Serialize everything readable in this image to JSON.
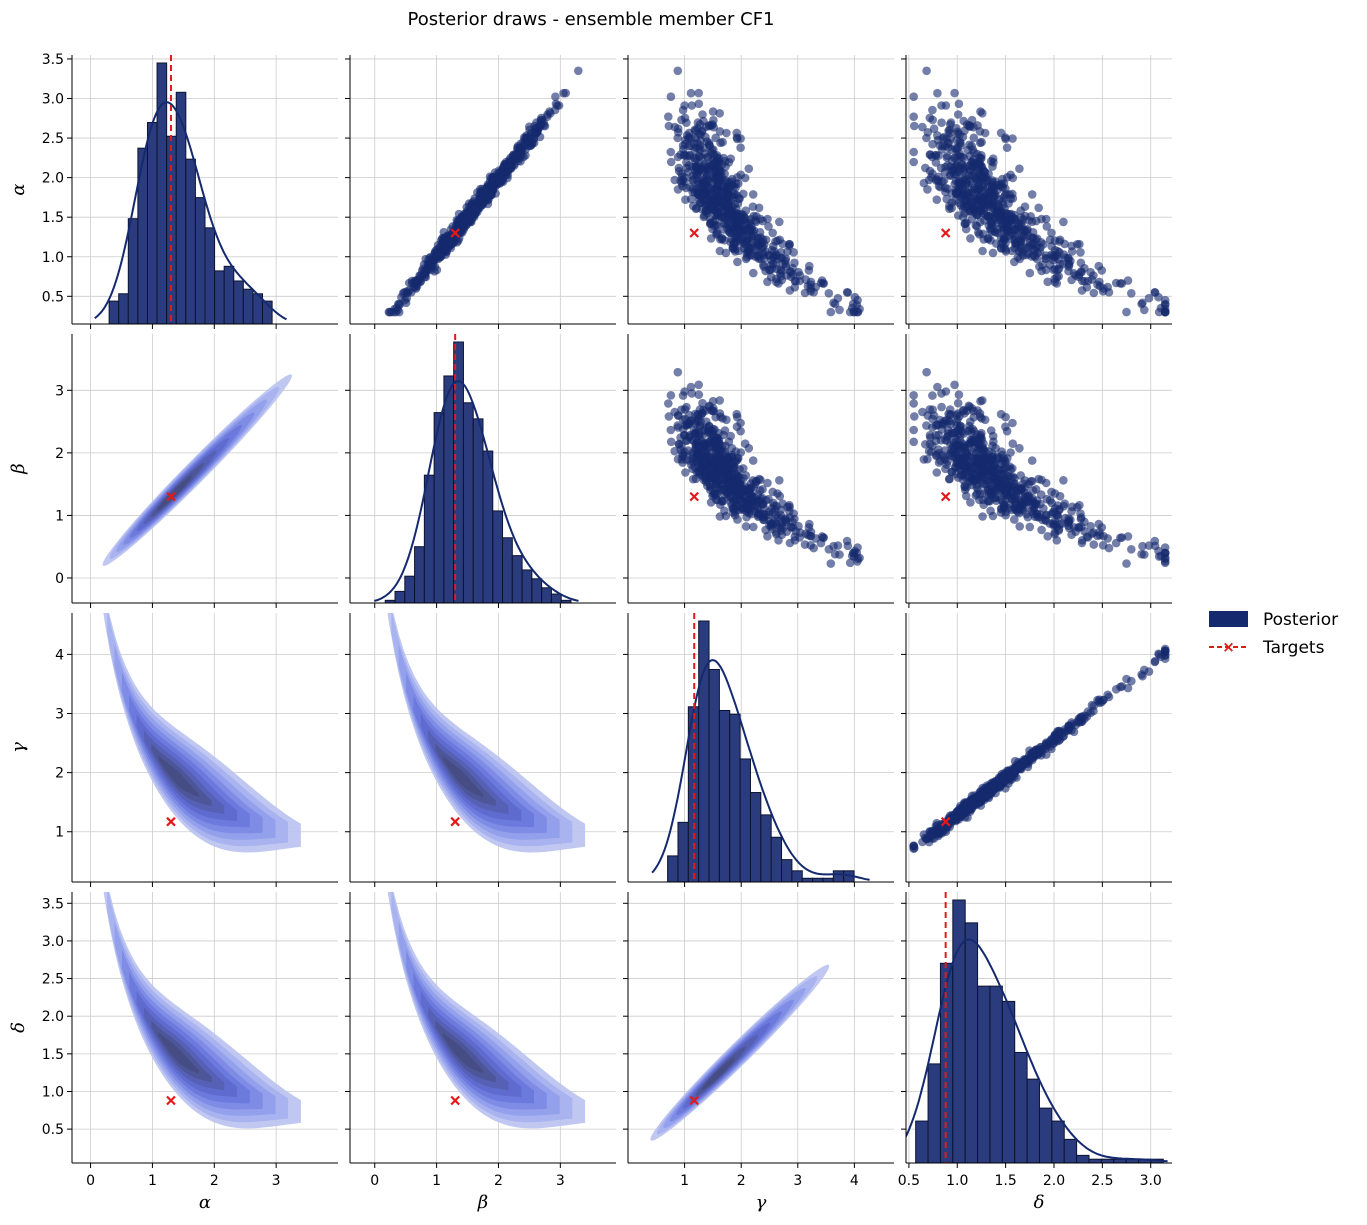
{
  "chart_data": {
    "type": "pairplot",
    "title": "Posterior draws - ensemble member CF1",
    "variables": [
      "α",
      "β",
      "γ",
      "δ"
    ],
    "axis_labels": [
      "α",
      "β",
      "γ",
      "δ"
    ],
    "x_ranges": [
      [
        -0.3,
        4.0
      ],
      [
        -0.4,
        3.9
      ],
      [
        0.0,
        4.7
      ],
      [
        0.47,
        3.22
      ]
    ],
    "y_ranges": [
      [
        0.15,
        3.55
      ],
      [
        -0.4,
        3.9
      ],
      [
        0.15,
        4.7
      ],
      [
        0.05,
        3.65
      ]
    ],
    "x_ticks": [
      [
        0,
        1,
        2,
        3
      ],
      [
        0,
        1,
        2,
        3
      ],
      [
        1,
        2,
        3,
        4
      ],
      [
        0.5,
        1.0,
        1.5,
        2.0,
        2.5,
        3.0
      ]
    ],
    "x_tick_labels": [
      [
        "0",
        "1",
        "2",
        "3"
      ],
      [
        "0",
        "1",
        "2",
        "3"
      ],
      [
        "1",
        "2",
        "3",
        "4"
      ],
      [
        "0.5",
        "1.0",
        "1.5",
        "2.0",
        "2.5",
        "3.0"
      ]
    ],
    "y_ticks": [
      [
        0.5,
        1.0,
        1.5,
        2.0,
        2.5,
        3.0,
        3.5
      ],
      [
        0,
        1,
        2,
        3
      ],
      [
        1,
        2,
        3,
        4
      ],
      [
        0.5,
        1.0,
        1.5,
        2.0,
        2.5,
        3.0,
        3.5
      ]
    ],
    "y_tick_labels": [
      [
        "0.5",
        "1.0",
        "1.5",
        "2.0",
        "2.5",
        "3.0",
        "3.5"
      ],
      [
        "0",
        "1",
        "2",
        "3"
      ],
      [
        "1",
        "2",
        "3",
        "4"
      ],
      [
        "0.5",
        "1.0",
        "1.5",
        "2.0",
        "2.5",
        "3.0",
        "3.5"
      ]
    ],
    "targets": [
      1.3,
      1.3,
      1.17,
      0.88
    ],
    "histograms": [
      {
        "variable": "α",
        "bin_start": 0.3,
        "bin_width": 0.155,
        "counts": [
          0.25,
          0.33,
          1.15,
          1.92,
          2.2,
          2.85,
          2.05,
          2.53,
          1.8,
          1.38,
          1.05,
          0.58,
          0.63,
          0.47,
          0.38,
          0.33,
          0.25
        ]
      },
      {
        "variable": "β",
        "bin_start": 0.17,
        "bin_width": 0.158,
        "counts": [
          0.03,
          0.13,
          0.3,
          0.63,
          1.43,
          2.13,
          2.54,
          2.92,
          2.24,
          2.06,
          1.7,
          1.03,
          0.73,
          0.53,
          0.37,
          0.27,
          0.17,
          0.1,
          0.03
        ]
      },
      {
        "variable": "γ",
        "bin_start": 0.7,
        "bin_width": 0.183,
        "counts": [
          0.35,
          0.8,
          2.35,
          3.5,
          2.85,
          2.3,
          2.25,
          1.65,
          1.2,
          0.9,
          0.6,
          0.3,
          0.15,
          0.05,
          0.05,
          0.05,
          0.15,
          0.15
        ]
      },
      {
        "variable": "δ",
        "bin_start": 0.57,
        "bin_width": 0.128,
        "counts": [
          0.55,
          1.3,
          2.62,
          3.45,
          3.15,
          2.32,
          2.32,
          2.12,
          1.45,
          1.1,
          0.72,
          0.55,
          0.31,
          0.1,
          0.05,
          0.05,
          0.05,
          0.05,
          0.05,
          0.05
        ]
      }
    ],
    "pairs": [
      {
        "x": "β",
        "y": "α",
        "relation": "linear",
        "slope": 1.0,
        "intercept": 0.0
      },
      {
        "x": "δ",
        "y": "γ",
        "relation": "linear",
        "slope": 1.33,
        "intercept": 0.0
      },
      {
        "x": "γ",
        "y": "α",
        "relation": "inverse"
      },
      {
        "x": "δ",
        "y": "α",
        "relation": "inverse"
      }
    ],
    "legend": [
      {
        "label": "Posterior",
        "color": "#152a6e",
        "kind": "patch"
      },
      {
        "label": "Targets",
        "color": "#e31a1c",
        "kind": "dashed-line-x-marker"
      }
    ],
    "legend_position": "right",
    "grid": true,
    "colors": {
      "posterior": "#152a6e",
      "hist_fill": "#2b3c7e",
      "target": "#e31a1c",
      "grid": "#cccccc",
      "kde_levels": [
        "#b9c2f1",
        "#a5b0ee",
        "#909dea",
        "#7d8ae4",
        "#6b78dc",
        "#5d69cc",
        "#5560b4",
        "#4c5596",
        "#464d82"
      ]
    }
  }
}
